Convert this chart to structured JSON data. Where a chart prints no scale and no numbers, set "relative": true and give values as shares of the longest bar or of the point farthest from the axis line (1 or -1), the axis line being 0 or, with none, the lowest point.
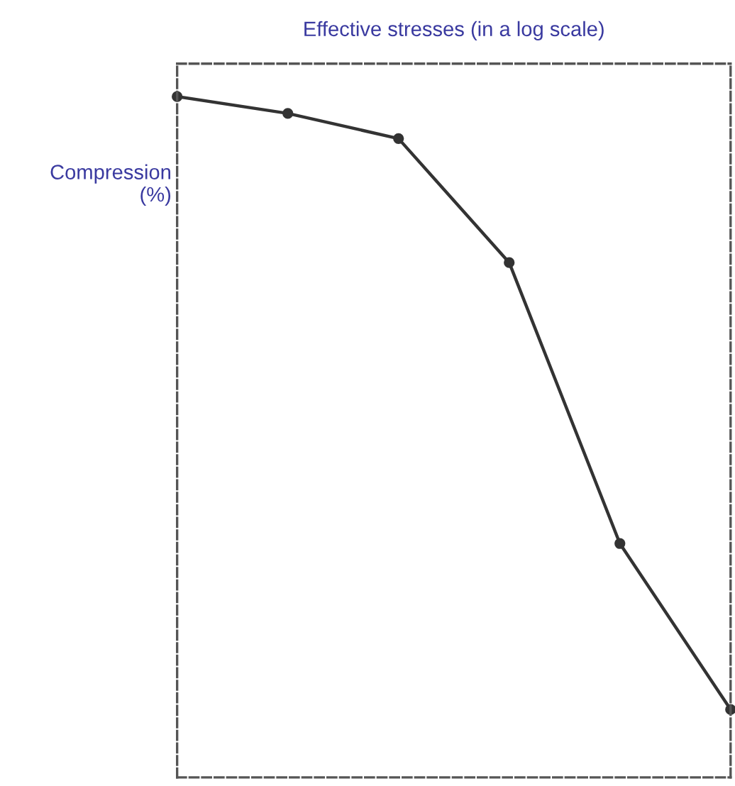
{
  "chart_data": {
    "type": "line",
    "relative": true,
    "xlabel": "Effective stresses (in a log scale)",
    "ylabel": "Compression\n(%)",
    "categories": [
      null,
      null,
      null,
      null,
      null,
      null
    ],
    "marker": "circle",
    "series": [
      {
        "color": "#333333",
        "values": [
          -0.051,
          -0.077,
          -0.116,
          -0.308,
          -0.743,
          -1
        ]
      }
    ]
  }
}
